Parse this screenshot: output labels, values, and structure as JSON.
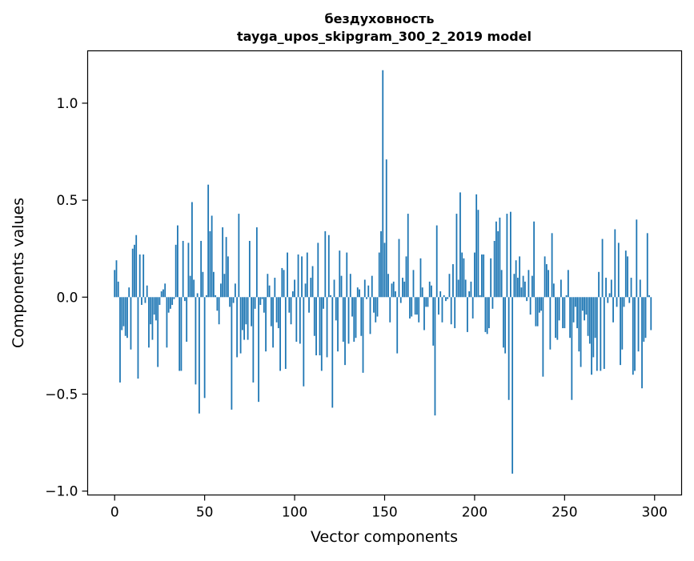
{
  "chart_data": {
    "type": "bar",
    "title": "бездуховность",
    "subtitle": "tayga_upos_skipgram_300_2_2019 model",
    "xlabel": "Vector components",
    "ylabel": "Components values",
    "xlim": [
      -15,
      315
    ],
    "ylim": [
      -1.02,
      1.27
    ],
    "xticks": [
      0,
      50,
      100,
      150,
      200,
      250,
      300
    ],
    "xtick_labels": [
      "0",
      "50",
      "100",
      "150",
      "200",
      "250",
      "300"
    ],
    "yticks": [
      -1.0,
      -0.5,
      0.0,
      0.5,
      1.0
    ],
    "ytick_labels": [
      "−1.0",
      "−0.5",
      "0.0",
      "0.5",
      "1.0"
    ],
    "grid": false,
    "legend": false,
    "bar_color": "#1f77b4",
    "series": [
      {
        "values": [
          0.14,
          0.19,
          0.08,
          -0.44,
          -0.17,
          -0.15,
          -0.2,
          -0.21,
          0.05,
          -0.27,
          0.25,
          0.27,
          0.32,
          -0.42,
          0.22,
          -0.04,
          0.22,
          -0.03,
          0.06,
          -0.26,
          -0.14,
          -0.22,
          -0.09,
          -0.12,
          -0.36,
          -0.04,
          0.03,
          0.04,
          0.07,
          -0.26,
          -0.08,
          -0.06,
          -0.04,
          -0.01,
          0.27,
          0.37,
          -0.38,
          -0.38,
          0.29,
          -0.02,
          -0.23,
          0.28,
          0.11,
          0.49,
          0.09,
          -0.45,
          0.02,
          -0.6,
          0.29,
          0.13,
          -0.52,
          0.01,
          0.58,
          0.34,
          0.42,
          0.13,
          0.01,
          -0.07,
          -0.14,
          0.07,
          0.36,
          0.12,
          0.31,
          0.21,
          -0.05,
          -0.58,
          -0.03,
          0.07,
          -0.31,
          0.43,
          -0.29,
          -0.17,
          -0.22,
          -0.14,
          -0.22,
          0.29,
          -0.15,
          -0.44,
          -0.06,
          0.36,
          -0.54,
          -0.04,
          -0.01,
          -0.08,
          -0.28,
          0.12,
          0.06,
          -0.15,
          -0.26,
          0.1,
          -0.13,
          -0.16,
          -0.38,
          0.15,
          0.14,
          -0.37,
          0.23,
          -0.08,
          -0.14,
          0.03,
          0.09,
          -0.23,
          0.22,
          -0.24,
          0.21,
          -0.46,
          0.07,
          0.23,
          -0.08,
          0.1,
          0.16,
          -0.2,
          -0.3,
          0.28,
          -0.3,
          -0.38,
          -0.06,
          0.34,
          -0.31,
          0.32,
          0.01,
          -0.57,
          0.09,
          -0.12,
          -0.28,
          0.24,
          0.11,
          -0.23,
          -0.35,
          0.23,
          -0.24,
          0.12,
          -0.1,
          -0.23,
          -0.21,
          0.05,
          0.04,
          -0.2,
          -0.39,
          0.09,
          -0.01,
          0.06,
          -0.19,
          0.11,
          -0.08,
          -0.13,
          -0.1,
          0.23,
          0.34,
          1.17,
          0.28,
          0.71,
          0.12,
          -0.13,
          0.07,
          0.08,
          0.03,
          -0.29,
          0.3,
          -0.03,
          0.1,
          0.08,
          0.21,
          0.43,
          -0.11,
          -0.1,
          0.14,
          -0.09,
          -0.09,
          -0.13,
          0.2,
          0.05,
          -0.17,
          -0.05,
          -0.05,
          0.08,
          0.06,
          -0.25,
          -0.61,
          0.37,
          -0.09,
          0.03,
          -0.13,
          0.01,
          -0.02,
          -0.01,
          0.12,
          -0.14,
          0.17,
          -0.16,
          0.43,
          0.09,
          0.54,
          0.23,
          0.2,
          0.09,
          -0.18,
          0.03,
          0.08,
          -0.11,
          0.23,
          0.53,
          0.45,
          0.01,
          0.22,
          0.22,
          -0.18,
          -0.19,
          -0.16,
          0.2,
          -0.06,
          0.29,
          0.39,
          0.34,
          0.41,
          0.14,
          -0.26,
          -0.29,
          0.43,
          -0.53,
          0.44,
          -0.91,
          0.12,
          0.19,
          0.1,
          0.21,
          0.05,
          0.11,
          0.08,
          -0.02,
          0.14,
          -0.09,
          0.11,
          0.39,
          -0.15,
          -0.15,
          -0.08,
          -0.07,
          -0.41,
          0.21,
          0.17,
          0.14,
          -0.27,
          0.33,
          0.07,
          -0.21,
          -0.22,
          -0.12,
          0.09,
          -0.16,
          -0.16,
          0.01,
          0.14,
          -0.21,
          -0.53,
          -0.13,
          -0.05,
          -0.16,
          -0.28,
          -0.36,
          -0.07,
          -0.12,
          -0.09,
          -0.2,
          -0.24,
          -0.4,
          -0.31,
          -0.21,
          -0.38,
          0.13,
          -0.38,
          0.3,
          -0.37,
          0.1,
          -0.03,
          0.02,
          0.09,
          -0.13,
          0.35,
          -0.05,
          0.28,
          -0.35,
          -0.27,
          -0.05,
          0.24,
          0.21,
          -0.03,
          0.1,
          -0.4,
          -0.38,
          0.4,
          -0.28,
          0.09,
          -0.47,
          -0.23,
          -0.21,
          0.33,
          0.01,
          -0.17
        ]
      }
    ]
  }
}
